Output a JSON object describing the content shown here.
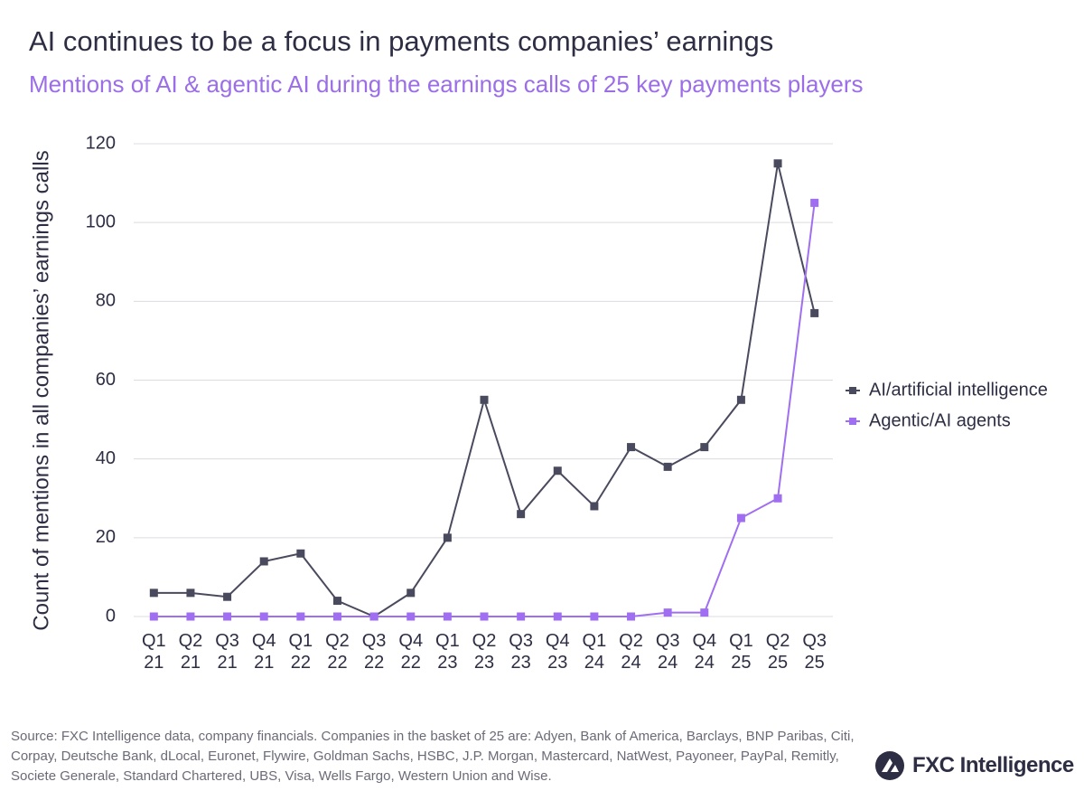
{
  "chart_data": {
    "type": "line",
    "title": "AI continues to be a focus in payments companies’ earnings",
    "subtitle": "Mentions of AI & agentic AI during the earnings calls of 25 key payments players",
    "y_label": "Count of mentions in all companies’ earnings calls",
    "categories": [
      "Q1 21",
      "Q2 21",
      "Q3 21",
      "Q4 21",
      "Q1 22",
      "Q2 22",
      "Q3 22",
      "Q4 22",
      "Q1 23",
      "Q2 23",
      "Q3 23",
      "Q4 23",
      "Q1 24",
      "Q2 24",
      "Q3 24",
      "Q4 24",
      "Q1 25",
      "Q2 25",
      "Q3 25"
    ],
    "series": [
      {
        "name": "AI/artificial intelligence",
        "color": "#4a4a5e",
        "values": [
          6,
          6,
          5,
          14,
          16,
          4,
          0,
          6,
          20,
          55,
          26,
          37,
          28,
          43,
          38,
          43,
          55,
          115,
          77
        ]
      },
      {
        "name": "Agentic/AI agents",
        "color": "#a06ef0",
        "values": [
          0,
          0,
          0,
          0,
          0,
          0,
          0,
          0,
          0,
          0,
          0,
          0,
          0,
          0,
          1,
          1,
          25,
          30,
          105
        ]
      }
    ],
    "ylim": [
      0,
      120
    ],
    "yticks": [
      0,
      20,
      40,
      60,
      80,
      100,
      120
    ],
    "grid": true,
    "legend": "right",
    "source": "Source: FXC Intelligence data, company financials. Companies in the basket of 25 are: Adyen, Bank of America, Barclays, BNP Paribas, Citi, Corpay, Deutsche Bank, dLocal, Euronet, Flywire, Goldman Sachs, HSBC, J.P. Morgan, Mastercard, NatWest, Payoneer, PayPal, Remitly, Societe Generale, Standard Chartered, UBS, Visa, Wells Fargo, Western Union and Wise.",
    "logo": "FXC Intelligence"
  }
}
